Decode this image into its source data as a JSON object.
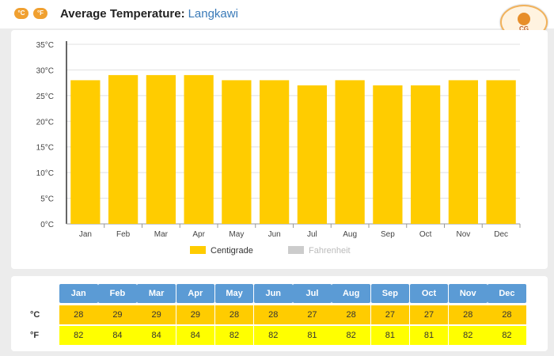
{
  "header": {
    "title": "Average Temperature:",
    "location": "Langkawi",
    "unit_buttons": [
      "°C",
      "°F"
    ]
  },
  "logo": {
    "text": "CG",
    "icon": "sun-logo-icon"
  },
  "colors": {
    "bar": "#ffcc00",
    "fahrenheit_legend": "#cccccc",
    "table_header": "#5b9bd5",
    "celsius_row": "#ffcc00",
    "fahrenheit_row": "#ffff00"
  },
  "chart_data": {
    "type": "bar",
    "categories": [
      "Jan",
      "Feb",
      "Mar",
      "Apr",
      "May",
      "Jun",
      "Jul",
      "Aug",
      "Sep",
      "Oct",
      "Nov",
      "Dec"
    ],
    "series": [
      {
        "name": "Centigrade",
        "values": [
          28,
          29,
          29,
          29,
          28,
          28,
          27,
          28,
          27,
          27,
          28,
          28
        ]
      },
      {
        "name": "Fahrenheit",
        "values": [
          82,
          84,
          84,
          84,
          82,
          82,
          81,
          82,
          81,
          81,
          82,
          82
        ],
        "hidden": true
      }
    ],
    "y_ticks": [
      "0°C",
      "5°C",
      "10°C",
      "15°C",
      "20°C",
      "25°C",
      "30°C",
      "35°C"
    ],
    "ylim": [
      0,
      35
    ],
    "grid": true,
    "legend_position": "bottom-center"
  },
  "table": {
    "months": [
      "Jan",
      "Feb",
      "Mar",
      "Apr",
      "May",
      "Jun",
      "Jul",
      "Aug",
      "Sep",
      "Oct",
      "Nov",
      "Dec"
    ],
    "celsius_label": "°C",
    "fahrenheit_label": "°F",
    "celsius": [
      "28",
      "29",
      "29",
      "29",
      "28",
      "28",
      "27",
      "28",
      "27",
      "27",
      "28",
      "28"
    ],
    "fahrenheit": [
      "82",
      "84",
      "84",
      "84",
      "82",
      "82",
      "81",
      "82",
      "81",
      "81",
      "82",
      "82"
    ]
  }
}
